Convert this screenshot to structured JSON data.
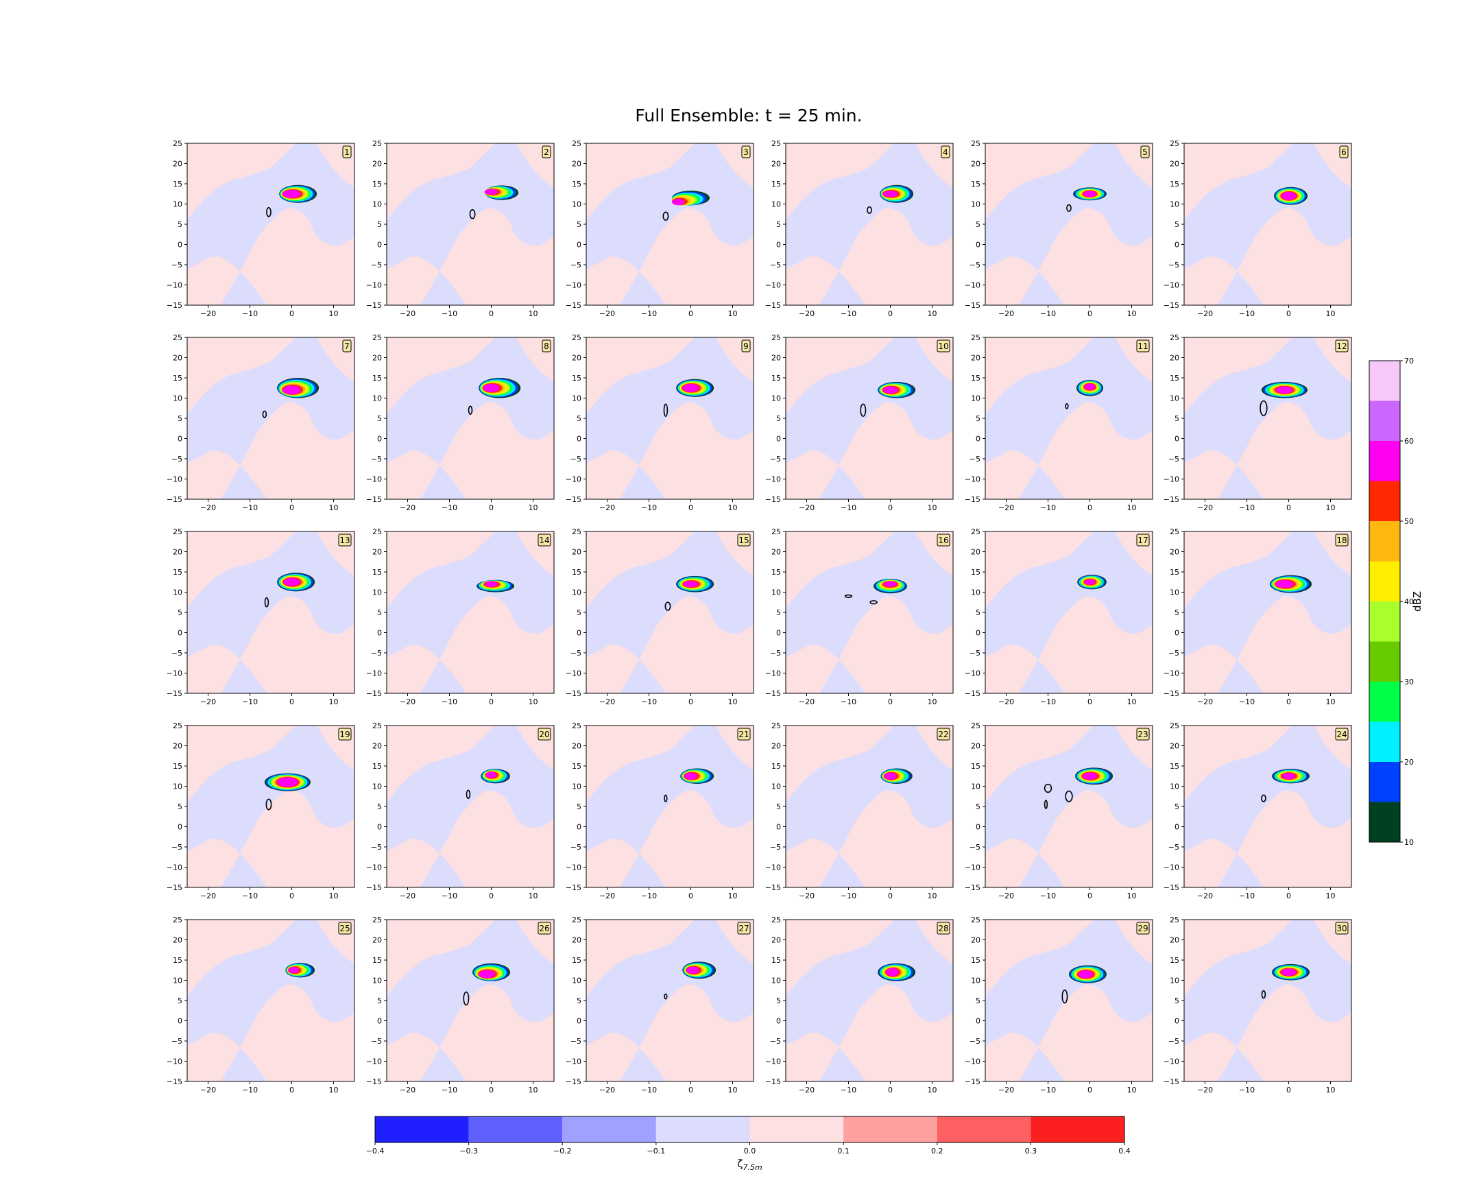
{
  "title": "Full Ensemble: t = 25 min.",
  "colors": {
    "vort_neg": "#dcdcfc",
    "vort_pos": "#fde0e2",
    "contour": "#000000",
    "label_box_fill": "#f5e8a6"
  },
  "chart_data": {
    "type": "heatmap",
    "layout": {
      "rows": 5,
      "cols": 6
    },
    "panel_labels": [
      "1",
      "2",
      "3",
      "4",
      "5",
      "6",
      "7",
      "8",
      "9",
      "10",
      "11",
      "12",
      "13",
      "14",
      "15",
      "16",
      "17",
      "18",
      "19",
      "20",
      "21",
      "22",
      "23",
      "24",
      "25",
      "26",
      "27",
      "28",
      "29",
      "30"
    ],
    "xlim": [
      -25,
      15
    ],
    "ylim": [
      -15,
      25
    ],
    "xticks": [
      -20,
      -10,
      0,
      10
    ],
    "xtick_labels": [
      "−20",
      "−10",
      "0",
      "10"
    ],
    "yticks": [
      -15,
      -10,
      -5,
      0,
      5,
      10,
      15,
      20,
      25
    ],
    "ytick_labels": [
      "−15",
      "−10",
      "−5",
      "0",
      "5",
      "10",
      "15",
      "20",
      "25"
    ],
    "members": [
      {
        "cx": 1.5,
        "cy": 12.5,
        "rx": 4.5,
        "ry": 2.2,
        "core": [
          0,
          12.5,
          2.2,
          1.0
        ],
        "loops": [
          [
            -5.5,
            8,
            0.5,
            1.1
          ]
        ]
      },
      {
        "cx": 2.5,
        "cy": 12.8,
        "rx": 4.0,
        "ry": 1.8,
        "core": [
          0,
          13,
          1.6,
          0.7
        ],
        "loops": [
          [
            -4.5,
            7.5,
            0.6,
            1.1
          ]
        ]
      },
      {
        "cx": 0,
        "cy": 11.5,
        "rx": 4.5,
        "ry": 1.8,
        "core": [
          -3,
          10.5,
          1.5,
          0.8
        ],
        "loops": [
          [
            -6,
            7,
            0.6,
            1.0
          ]
        ]
      },
      {
        "cx": 1.5,
        "cy": 12.5,
        "rx": 4.0,
        "ry": 2.2,
        "core": [
          0,
          12.5,
          1.8,
          0.8
        ],
        "loops": [
          [
            -5,
            8.5,
            0.5,
            0.8
          ]
        ]
      },
      {
        "cx": 0,
        "cy": 12.5,
        "rx": 4.0,
        "ry": 1.6,
        "core": [
          0,
          12.5,
          1.5,
          0.8
        ],
        "loops": [
          [
            -5,
            9,
            0.5,
            0.8
          ]
        ]
      },
      {
        "cx": 0.5,
        "cy": 12,
        "rx": 4.0,
        "ry": 2.2,
        "core": [
          0,
          12,
          1.8,
          1.0
        ],
        "loops": []
      },
      {
        "cx": 1.5,
        "cy": 12.5,
        "rx": 5.0,
        "ry": 2.5,
        "core": [
          0,
          12,
          2.2,
          1.1
        ],
        "loops": [
          [
            -6.5,
            6,
            0.4,
            0.8
          ]
        ]
      },
      {
        "cx": 2,
        "cy": 12.5,
        "rx": 5.0,
        "ry": 2.5,
        "core": [
          0,
          12.5,
          2.0,
          1.0
        ],
        "loops": [
          [
            -5,
            7,
            0.4,
            1.0
          ]
        ]
      },
      {
        "cx": 1,
        "cy": 12.5,
        "rx": 4.5,
        "ry": 2.2,
        "core": [
          0,
          12.5,
          2.0,
          1.0
        ],
        "loops": [
          [
            -6,
            7,
            0.4,
            1.5
          ]
        ]
      },
      {
        "cx": 1.5,
        "cy": 12,
        "rx": 4.5,
        "ry": 2.0,
        "core": [
          0,
          12,
          1.8,
          0.9
        ],
        "loops": [
          [
            -6.5,
            7,
            0.6,
            1.5
          ]
        ]
      },
      {
        "cx": 0,
        "cy": 12.5,
        "rx": 3.2,
        "ry": 2.0,
        "core": [
          0,
          12.8,
          1.3,
          0.8
        ],
        "loops": [
          [
            -5.5,
            8,
            0.3,
            0.6
          ]
        ]
      },
      {
        "cx": -1,
        "cy": 12,
        "rx": 5.5,
        "ry": 2.0,
        "core": [
          -1,
          12,
          2.0,
          0.9
        ],
        "loops": [
          [
            -6,
            7.5,
            0.8,
            1.8
          ]
        ]
      },
      {
        "cx": 1,
        "cy": 12.5,
        "rx": 4.5,
        "ry": 2.3,
        "core": [
          0,
          12.5,
          2.0,
          1.0
        ],
        "loops": [
          [
            -6,
            7.5,
            0.4,
            1.1
          ]
        ]
      },
      {
        "cx": 1,
        "cy": 11.5,
        "rx": 4.5,
        "ry": 1.5,
        "core": [
          0,
          12,
          1.6,
          0.7
        ],
        "loops": []
      },
      {
        "cx": 1,
        "cy": 12,
        "rx": 4.5,
        "ry": 2.0,
        "core": [
          0,
          12,
          1.8,
          0.8
        ],
        "loops": [
          [
            -5.5,
            6.5,
            0.6,
            1.0
          ]
        ]
      },
      {
        "cx": 0,
        "cy": 11.5,
        "rx": 4.0,
        "ry": 1.8,
        "core": [
          0,
          12,
          1.6,
          0.7
        ],
        "loops": [
          [
            -10,
            9,
            0.8,
            0.3
          ],
          [
            -4,
            7.5,
            0.8,
            0.4
          ]
        ]
      },
      {
        "cx": 0.5,
        "cy": 12.5,
        "rx": 3.5,
        "ry": 1.8,
        "core": [
          0,
          12.5,
          1.3,
          0.7
        ],
        "loops": []
      },
      {
        "cx": 0.5,
        "cy": 12,
        "rx": 5.0,
        "ry": 2.2,
        "core": [
          -1,
          12,
          2.2,
          1.0
        ],
        "loops": []
      },
      {
        "cx": -1,
        "cy": 11,
        "rx": 5.5,
        "ry": 2.2,
        "core": [
          -1,
          11,
          2.5,
          1.2
        ],
        "loops": [
          [
            -5.5,
            5.5,
            0.6,
            1.3
          ]
        ]
      },
      {
        "cx": 1,
        "cy": 12.5,
        "rx": 3.5,
        "ry": 1.8,
        "core": [
          0,
          12.8,
          1.3,
          0.8
        ],
        "loops": [
          [
            -5.5,
            8,
            0.4,
            1.0
          ]
        ]
      },
      {
        "cx": 1.5,
        "cy": 12.5,
        "rx": 4.0,
        "ry": 1.9,
        "core": [
          0,
          12.5,
          1.6,
          0.9
        ],
        "loops": [
          [
            -6,
            7,
            0.3,
            0.8
          ]
        ]
      },
      {
        "cx": 1.5,
        "cy": 12.5,
        "rx": 3.8,
        "ry": 1.9,
        "core": [
          0,
          12.5,
          1.5,
          0.9
        ],
        "loops": []
      },
      {
        "cx": 1,
        "cy": 12.5,
        "rx": 4.5,
        "ry": 2.1,
        "core": [
          0,
          12.5,
          1.8,
          0.9
        ],
        "loops": [
          [
            -10,
            9.5,
            0.8,
            1.0
          ],
          [
            -5,
            7.5,
            0.8,
            1.3
          ],
          [
            -10.5,
            5.5,
            0.3,
            1.0
          ]
        ]
      },
      {
        "cx": 0.5,
        "cy": 12.5,
        "rx": 4.5,
        "ry": 1.8,
        "core": [
          0,
          12.5,
          1.6,
          0.8
        ],
        "loops": [
          [
            -6,
            7,
            0.5,
            0.8
          ]
        ]
      },
      {
        "cx": 2,
        "cy": 12.5,
        "rx": 3.5,
        "ry": 1.8,
        "core": [
          0.5,
          12.5,
          1.3,
          0.8
        ],
        "loops": []
      },
      {
        "cx": 0,
        "cy": 12,
        "rx": 4.5,
        "ry": 2.2,
        "core": [
          -1,
          11.5,
          2.0,
          1.0
        ],
        "loops": [
          [
            -6,
            5.5,
            0.6,
            1.6
          ]
        ]
      },
      {
        "cx": 2,
        "cy": 12.5,
        "rx": 4.0,
        "ry": 2.1,
        "core": [
          0.5,
          12.5,
          1.6,
          0.9
        ],
        "loops": [
          [
            -6,
            6,
            0.3,
            0.6
          ]
        ]
      },
      {
        "cx": 1.5,
        "cy": 12,
        "rx": 4.5,
        "ry": 2.2,
        "core": [
          0.5,
          12,
          1.5,
          1.0
        ],
        "loops": []
      },
      {
        "cx": -0.5,
        "cy": 11.5,
        "rx": 4.5,
        "ry": 2.2,
        "core": [
          -1,
          11.5,
          1.8,
          1.0
        ],
        "loops": [
          [
            -6,
            6,
            0.6,
            1.6
          ]
        ]
      },
      {
        "cx": 0.5,
        "cy": 12,
        "rx": 4.5,
        "ry": 2.0,
        "core": [
          0,
          12,
          1.8,
          0.9
        ],
        "loops": [
          [
            -6,
            6.5,
            0.4,
            0.9
          ]
        ]
      }
    ],
    "reflectivity_colorbar": {
      "label": "dBZ",
      "levels": [
        10,
        15,
        20,
        25,
        30,
        35,
        40,
        45,
        50,
        55,
        60,
        65,
        70
      ],
      "tick_values": [
        10,
        20,
        30,
        40,
        50,
        60,
        70
      ],
      "tick_labels": [
        "10",
        "20",
        "30",
        "40",
        "50",
        "60",
        "70"
      ],
      "colors": [
        "#004020",
        "#0040ff",
        "#00f0ff",
        "#00ff48",
        "#66cc00",
        "#a8ff2c",
        "#ffee00",
        "#ffb810",
        "#ff2800",
        "#ff00f0",
        "#cc66ff",
        "#f6c8f8"
      ]
    },
    "vorticity_colorbar": {
      "label": "ζ",
      "label_sub": "7.5m",
      "levels": [
        -0.4,
        -0.3,
        -0.2,
        -0.1,
        0.0,
        0.1,
        0.2,
        0.3,
        0.4
      ],
      "tick_labels": [
        "−0.4",
        "−0.3",
        "−0.2",
        "−0.1",
        "0.0",
        "0.1",
        "0.2",
        "0.3",
        "0.4"
      ],
      "colors": [
        "#1f1fff",
        "#6060ff",
        "#a0a0ff",
        "#dcdcfc",
        "#fde0e2",
        "#fca0a0",
        "#fc6060",
        "#fc1f1f"
      ]
    }
  }
}
